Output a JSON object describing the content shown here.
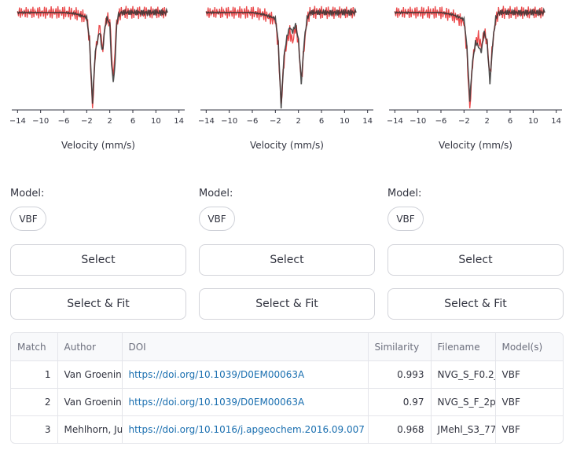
{
  "chart_data": [
    {
      "type": "line",
      "xlabel": "Velocity (mm/s)",
      "xlim": [
        -15,
        15
      ],
      "xticks": [
        -14,
        -10,
        -6,
        -2,
        2,
        6,
        10,
        14
      ],
      "series": [
        {
          "color": "#e8292b",
          "x": [
            -14,
            -12,
            -10,
            -8,
            -6,
            -4,
            -2,
            -1.5,
            -1,
            -0.5,
            0,
            0.3,
            0.5,
            0.8,
            1,
            1.5,
            2,
            2.3,
            2.6,
            2.9,
            3.2,
            3.5,
            4,
            6,
            8,
            10,
            12
          ],
          "y": [
            0,
            0,
            0,
            0,
            0,
            -0.01,
            -0.05,
            -0.3,
            -1.0,
            -0.4,
            -0.25,
            -0.15,
            -0.3,
            -0.35,
            -0.2,
            -0.05,
            -0.1,
            -0.4,
            -0.65,
            -0.4,
            -0.1,
            -0.03,
            0,
            0,
            0,
            0,
            0
          ]
        },
        {
          "color": "#333333",
          "x": [
            -14,
            -12,
            -10,
            -8,
            -6,
            -4,
            -2,
            -1.5,
            -1,
            -0.5,
            0,
            0.3,
            0.5,
            0.8,
            1,
            1.5,
            2,
            2.3,
            2.6,
            2.9,
            3.2,
            3.5,
            4,
            6,
            8,
            10,
            12
          ],
          "y": [
            0,
            0,
            0,
            0,
            0,
            -0.01,
            -0.05,
            -0.3,
            -0.92,
            -0.4,
            -0.25,
            -0.18,
            -0.32,
            -0.38,
            -0.22,
            -0.05,
            -0.12,
            -0.5,
            -0.75,
            -0.5,
            -0.12,
            -0.03,
            0,
            0,
            0,
            0,
            0
          ]
        }
      ]
    },
    {
      "type": "line",
      "xlabel": "Velocity (mm/s)",
      "xlim": [
        -15,
        15
      ],
      "xticks": [
        -14,
        -10,
        -6,
        -2,
        2,
        6,
        10,
        14
      ],
      "series": [
        {
          "color": "#e8292b",
          "x": [
            -14,
            -12,
            -10,
            -8,
            -6,
            -4,
            -2,
            -1.5,
            -1,
            -0.5,
            0,
            0.5,
            1,
            1.5,
            2,
            2.5,
            3,
            3.5,
            4,
            6,
            8,
            10,
            12
          ],
          "y": [
            0,
            0,
            0,
            0,
            0,
            -0.02,
            -0.08,
            -0.35,
            -0.95,
            -0.5,
            -0.3,
            -0.2,
            -0.3,
            -0.15,
            -0.3,
            -0.7,
            -0.35,
            -0.08,
            0,
            0,
            0,
            0,
            0
          ]
        },
        {
          "color": "#333333",
          "x": [
            -14,
            -12,
            -10,
            -8,
            -6,
            -4,
            -2,
            -1.5,
            -1,
            -0.5,
            0,
            0.5,
            1,
            1.5,
            2,
            2.5,
            3,
            3.5,
            4,
            6,
            8,
            10,
            12
          ],
          "y": [
            0,
            0,
            0,
            0,
            0,
            -0.02,
            -0.06,
            -0.3,
            -0.97,
            -0.45,
            -0.25,
            -0.15,
            -0.2,
            -0.12,
            -0.28,
            -0.72,
            -0.3,
            -0.06,
            0,
            0,
            0,
            0,
            0
          ]
        }
      ]
    },
    {
      "type": "line",
      "xlabel": "Velocity (mm/s)",
      "xlim": [
        -15,
        15
      ],
      "xticks": [
        -14,
        -10,
        -6,
        -2,
        2,
        6,
        10,
        14
      ],
      "series": [
        {
          "color": "#e8292b",
          "x": [
            -14,
            -12,
            -10,
            -8,
            -6,
            -4,
            -2,
            -1.5,
            -1,
            -0.5,
            0,
            0.5,
            1,
            1.5,
            2,
            2.5,
            3,
            3.5,
            4,
            6,
            8,
            10,
            12
          ],
          "y": [
            0,
            0,
            0,
            0,
            0,
            -0.03,
            -0.1,
            -0.4,
            -1.0,
            -0.5,
            -0.3,
            -0.25,
            -0.35,
            -0.2,
            -0.3,
            -0.65,
            -0.3,
            -0.08,
            0,
            0,
            0,
            0,
            0
          ]
        },
        {
          "color": "#333333",
          "x": [
            -14,
            -12,
            -10,
            -8,
            -6,
            -4,
            -2,
            -1.5,
            -1,
            -0.5,
            0,
            0.5,
            1,
            1.5,
            2,
            2.5,
            3,
            3.5,
            4,
            6,
            8,
            10,
            12
          ],
          "y": [
            0,
            0,
            0,
            0,
            0,
            -0.02,
            -0.07,
            -0.35,
            -0.9,
            -0.5,
            -0.3,
            -0.35,
            -0.4,
            -0.2,
            -0.3,
            -0.72,
            -0.3,
            -0.06,
            0,
            0,
            0,
            0,
            0
          ]
        }
      ]
    }
  ],
  "panels": [
    {
      "model_label": "Model:",
      "model_value": "VBF",
      "select_label": "Select",
      "fit_label": "Select & Fit"
    },
    {
      "model_label": "Model:",
      "model_value": "VBF",
      "select_label": "Select",
      "fit_label": "Select & Fit"
    },
    {
      "model_label": "Model:",
      "model_value": "VBF",
      "select_label": "Select",
      "fit_label": "Select & Fit"
    }
  ],
  "table": {
    "headers": [
      "Match",
      "Author",
      "DOI",
      "Similarity",
      "Filename",
      "Model(s)"
    ],
    "rows": [
      [
        "1",
        "Van Groening",
        "https://doi.org/10.1039/D0EM00063A",
        "0.993",
        "NVG_S_F0.2_",
        "VBF"
      ],
      [
        "2",
        "Van Groening",
        "https://doi.org/10.1039/D0EM00063A",
        "0.97",
        "NVG_S_F_2p",
        "VBF"
      ],
      [
        "3",
        "Mehlhorn, Ju",
        "https://doi.org/10.1016/j.apgeochem.2016.09.007",
        "0.968",
        "JMehl_S3_77",
        "VBF"
      ]
    ]
  }
}
